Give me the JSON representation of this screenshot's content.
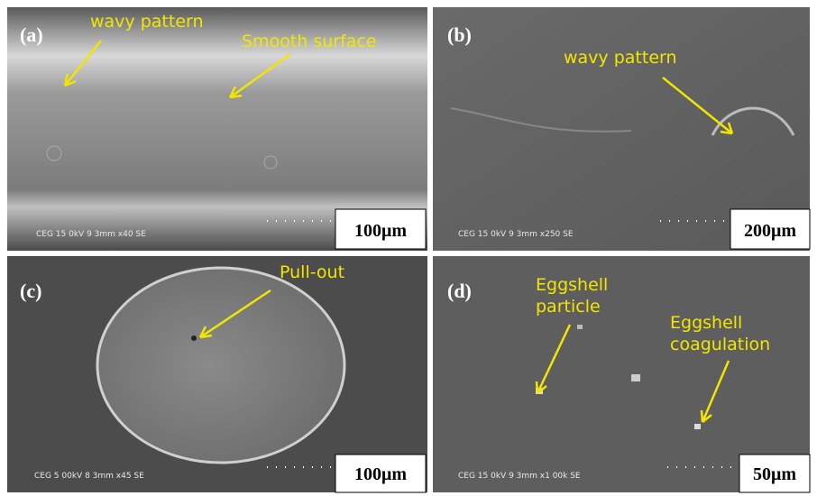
{
  "panels": [
    {
      "label": "(a)",
      "annotations": [
        {
          "lines": [
            "wavy pattern"
          ]
        },
        {
          "lines": [
            "Smooth surface"
          ]
        }
      ],
      "info": "CEG 15 0kV 9 3mm x40 SE",
      "scale_bar": "100μm"
    },
    {
      "label": "(b)",
      "annotations": [
        {
          "lines": [
            "wavy pattern"
          ]
        }
      ],
      "info": "CEG 15 0kV 9 3mm x250 SE",
      "scale_bar": "200μm"
    },
    {
      "label": "(c)",
      "annotations": [
        {
          "lines": [
            "Pull-out"
          ]
        }
      ],
      "info": "CEG 5 00kV 8 3mm x45 SE",
      "scale_bar": "100μm"
    },
    {
      "label": "(d)",
      "annotations": [
        {
          "lines": [
            "Eggshell",
            "particle"
          ]
        },
        {
          "lines": [
            "Eggshell",
            "coagulation"
          ]
        }
      ],
      "info": "CEG 15 0kV 9 3mm x1 00k SE",
      "scale_bar": "50μm"
    }
  ]
}
